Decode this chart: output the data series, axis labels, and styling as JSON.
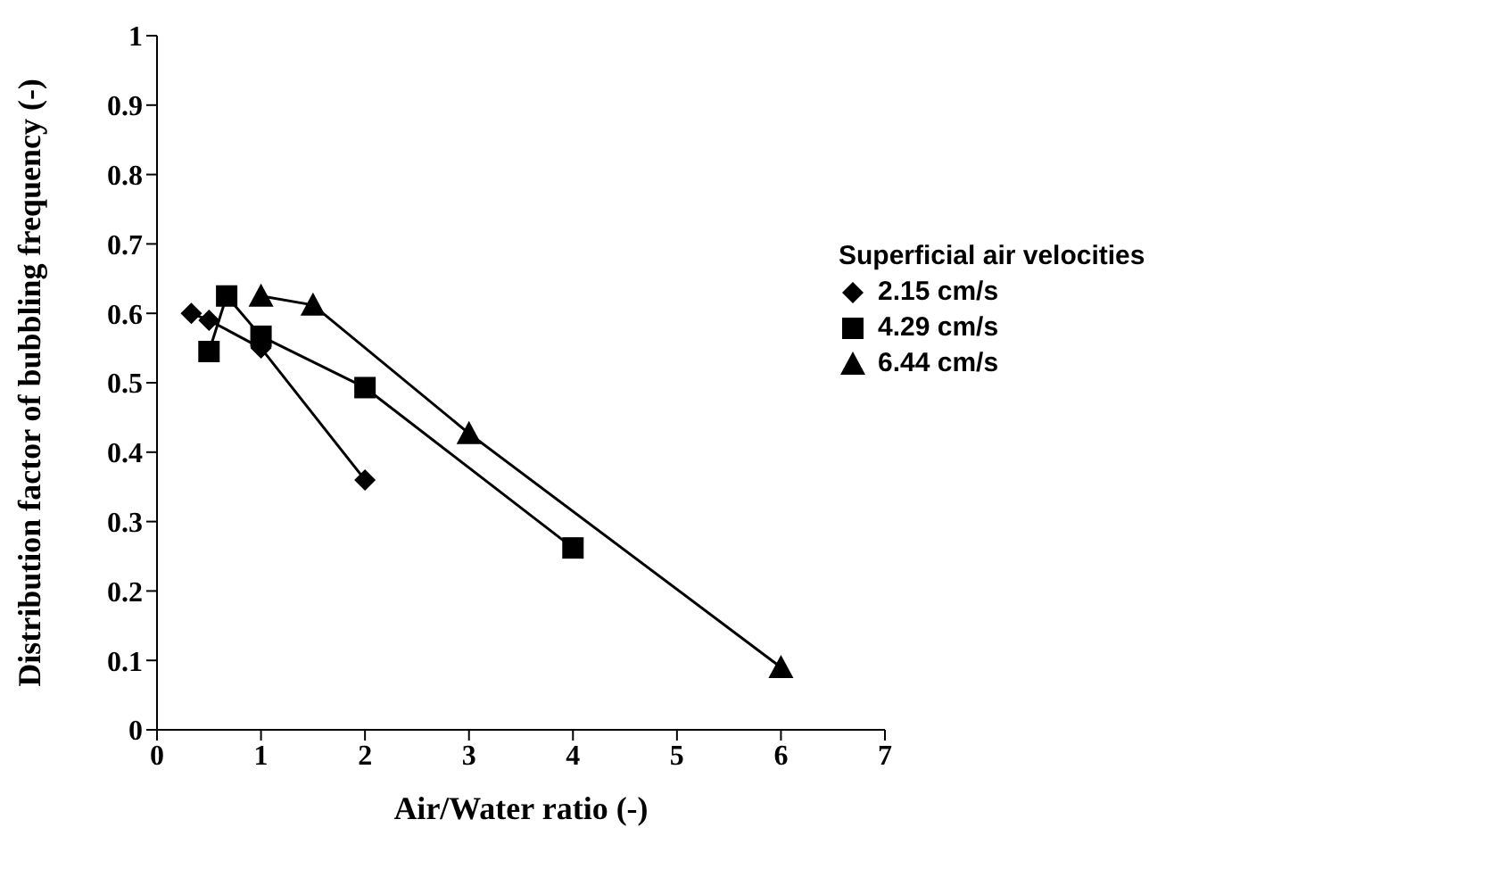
{
  "chart_data": {
    "type": "line",
    "xlabel": "Air/Water ratio (-)",
    "ylabel": "Distribution factor of bubbling frequency (-)",
    "legend_title": "Superficial air velocities",
    "legend": "right",
    "grid": false,
    "line_style": "solid",
    "xlim": [
      0,
      7
    ],
    "xticks": [
      0,
      1,
      2,
      3,
      4,
      5,
      6,
      7
    ],
    "ylim": [
      0,
      1
    ],
    "yticks": [
      0,
      0.1,
      0.2,
      0.3,
      0.4,
      0.5,
      0.6,
      0.7,
      0.8,
      0.9,
      1
    ],
    "series": [
      {
        "name": "2.15 cm/s",
        "color": "#000000",
        "marker": "diamond",
        "x": [
          0.33,
          0.5,
          1,
          2
        ],
        "values": [
          0.6,
          0.59,
          0.55,
          0.36
        ]
      },
      {
        "name": "4.29 cm/s",
        "color": "#000000",
        "marker": "square",
        "x": [
          0.5,
          0.67,
          1,
          2,
          4
        ],
        "values": [
          0.545,
          0.625,
          0.567,
          0.493,
          0.262
        ]
      },
      {
        "name": "6.44 cm/s",
        "color": "#000000",
        "marker": "triangle",
        "x": [
          1,
          1.5,
          3,
          6
        ],
        "values": [
          0.625,
          0.612,
          0.427,
          0.09
        ]
      }
    ]
  }
}
